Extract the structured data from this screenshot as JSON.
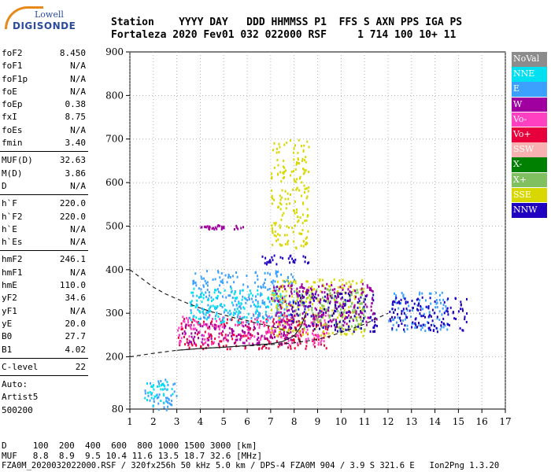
{
  "logo": {
    "line1": "Lowell",
    "line2": "DIGISONDE"
  },
  "header": {
    "labels": "Station    YYYY DAY   DDD HHMMSS P1  FFS S AXN PPS IGA PS",
    "values": "Fortaleza 2020 Fev01 032 022000 RSF     1 714 100 10+ 11"
  },
  "params": [
    [
      {
        "k": "foF2",
        "v": "8.450"
      },
      {
        "k": "foF1",
        "v": "N/A"
      },
      {
        "k": "foF1p",
        "v": "N/A"
      },
      {
        "k": "foE",
        "v": "N/A"
      },
      {
        "k": "foEp",
        "v": "0.38"
      },
      {
        "k": "fxI",
        "v": "8.75"
      },
      {
        "k": "foEs",
        "v": "N/A"
      },
      {
        "k": "fmin",
        "v": "3.40"
      }
    ],
    [
      {
        "k": "MUF(D)",
        "v": "32.63"
      },
      {
        "k": "M(D)",
        "v": "3.86"
      },
      {
        "k": "D",
        "v": "N/A"
      }
    ],
    [
      {
        "k": "h`F",
        "v": "220.0"
      },
      {
        "k": "h`F2",
        "v": "220.0"
      },
      {
        "k": "h`E",
        "v": "N/A"
      },
      {
        "k": "h`Es",
        "v": "N/A"
      }
    ],
    [
      {
        "k": "hmF2",
        "v": "246.1"
      },
      {
        "k": "hmF1",
        "v": "N/A"
      },
      {
        "k": "hmE",
        "v": "110.0"
      },
      {
        "k": "yF2",
        "v": "34.6"
      },
      {
        "k": "yF1",
        "v": "N/A"
      },
      {
        "k": "yE",
        "v": "20.0"
      },
      {
        "k": "B0",
        "v": "27.7"
      },
      {
        "k": "B1",
        "v": "4.02"
      }
    ],
    [
      {
        "k": "C-level",
        "v": "22"
      }
    ],
    [
      {
        "k": "Auto:",
        "v": ""
      },
      {
        "k": "Artist5",
        "v": ""
      },
      {
        "k": "500200",
        "v": ""
      }
    ]
  ],
  "legend": [
    {
      "label": "NoVal",
      "color": "#8c8c8c"
    },
    {
      "label": "NNE",
      "color": "#00e0f0"
    },
    {
      "label": "E",
      "color": "#3ca0ff"
    },
    {
      "label": "W",
      "color": "#a000a0"
    },
    {
      "label": "Vo-",
      "color": "#ff40c0"
    },
    {
      "label": "Vo+",
      "color": "#e8003c"
    },
    {
      "label": "SSW",
      "color": "#f8b0b0"
    },
    {
      "label": "X-",
      "color": "#008000"
    },
    {
      "label": "X+",
      "color": "#80c060"
    },
    {
      "label": "SSE",
      "color": "#d8d800"
    },
    {
      "label": "NNW",
      "color": "#2000c0"
    }
  ],
  "footer": {
    "line1": "D     100  200  400  600  800 1000 1500 3000 [km]",
    "line2": "MUF   8.8  8.9  9.5 10.4 11.6 13.5 18.7 32.6 [MHz]",
    "line3": "FZA0M_2020032022000.RSF / 320fx256h 50 kHz 5.0 km / DPS-4 FZA0M 904 / 3.9 S 321.6 E   Ion2Png 1.3.20"
  },
  "chart_data": {
    "type": "scatter",
    "title": "",
    "xlabel": "",
    "ylabel": "",
    "xlim": [
      1,
      17
    ],
    "ylim": [
      80,
      900
    ],
    "x_ticks": [
      1,
      2,
      3,
      4,
      5,
      6,
      7,
      8,
      9,
      10,
      11,
      12,
      13,
      14,
      15,
      16,
      17
    ],
    "y_ticks": [
      80,
      200,
      300,
      400,
      500,
      600,
      700,
      800,
      900
    ],
    "grid": true,
    "legend_position": "right",
    "clusters": [
      {
        "series": "E",
        "x": [
          1.6,
          3.0
        ],
        "y": [
          80,
          150
        ]
      },
      {
        "series": "NNE",
        "x": [
          1.6,
          2.8
        ],
        "y": [
          90,
          145
        ]
      },
      {
        "series": "Vo+",
        "x": [
          3.0,
          9.5
        ],
        "y": [
          220,
          290
        ]
      },
      {
        "series": "Vo-",
        "x": [
          3.0,
          9.5
        ],
        "y": [
          230,
          300
        ]
      },
      {
        "series": "W",
        "x": [
          3.2,
          8.0
        ],
        "y": [
          230,
          280
        ]
      },
      {
        "series": "E",
        "x": [
          3.5,
          8.0
        ],
        "y": [
          290,
          400
        ]
      },
      {
        "series": "NNE",
        "x": [
          3.5,
          7.5
        ],
        "y": [
          280,
          360
        ]
      },
      {
        "series": "SSE",
        "x": [
          7.0,
          11.0
        ],
        "y": [
          250,
          380
        ]
      },
      {
        "series": "X+",
        "x": [
          8.0,
          11.0
        ],
        "y": [
          260,
          360
        ]
      },
      {
        "series": "NNW",
        "x": [
          7.8,
          11.5
        ],
        "y": [
          260,
          350
        ]
      },
      {
        "series": "W",
        "x": [
          7.0,
          11.5
        ],
        "y": [
          270,
          370
        ]
      },
      {
        "series": "E",
        "x": [
          12.0,
          14.5
        ],
        "y": [
          260,
          350
        ]
      },
      {
        "series": "NNW",
        "x": [
          12.0,
          15.4
        ],
        "y": [
          260,
          340
        ]
      },
      {
        "series": "NNW",
        "x": [
          6.6,
          8.6
        ],
        "y": [
          415,
          435
        ]
      },
      {
        "series": "SSE",
        "x": [
          7.0,
          8.6
        ],
        "y": [
          450,
          700
        ]
      },
      {
        "series": "W",
        "x": [
          4.0,
          5.8
        ],
        "y": [
          495,
          505
        ]
      }
    ],
    "traces": [
      {
        "series": "NoVal",
        "style": "dashed",
        "x": [
          1.0,
          1.5,
          2.0,
          2.5,
          3.0,
          3.5,
          4.0,
          4.5,
          5.0,
          5.5,
          6.0,
          6.5,
          7.0,
          7.5,
          8.0,
          8.4
        ],
        "y": [
          400,
          380,
          360,
          345,
          333,
          322,
          312,
          303,
          296,
          289,
          283,
          276,
          270,
          262,
          248,
          230
        ]
      },
      {
        "series": "NoVal",
        "style": "dashed",
        "x": [
          1.0,
          2.0,
          3.0,
          4.0,
          5.0,
          6.0,
          7.0,
          8.0,
          9.0,
          9.5,
          10.0,
          11.0,
          12.0
        ],
        "y": [
          200,
          208,
          215,
          219,
          222,
          225,
          228,
          232,
          240,
          247,
          256,
          275,
          300
        ]
      },
      {
        "series": "NoVal",
        "style": "solid",
        "x": [
          3.0,
          4.0,
          5.0,
          6.0,
          7.0,
          7.5,
          8.0,
          8.3,
          8.5
        ],
        "y": [
          215,
          219,
          222,
          226,
          230,
          235,
          248,
          270,
          300
        ]
      }
    ]
  }
}
